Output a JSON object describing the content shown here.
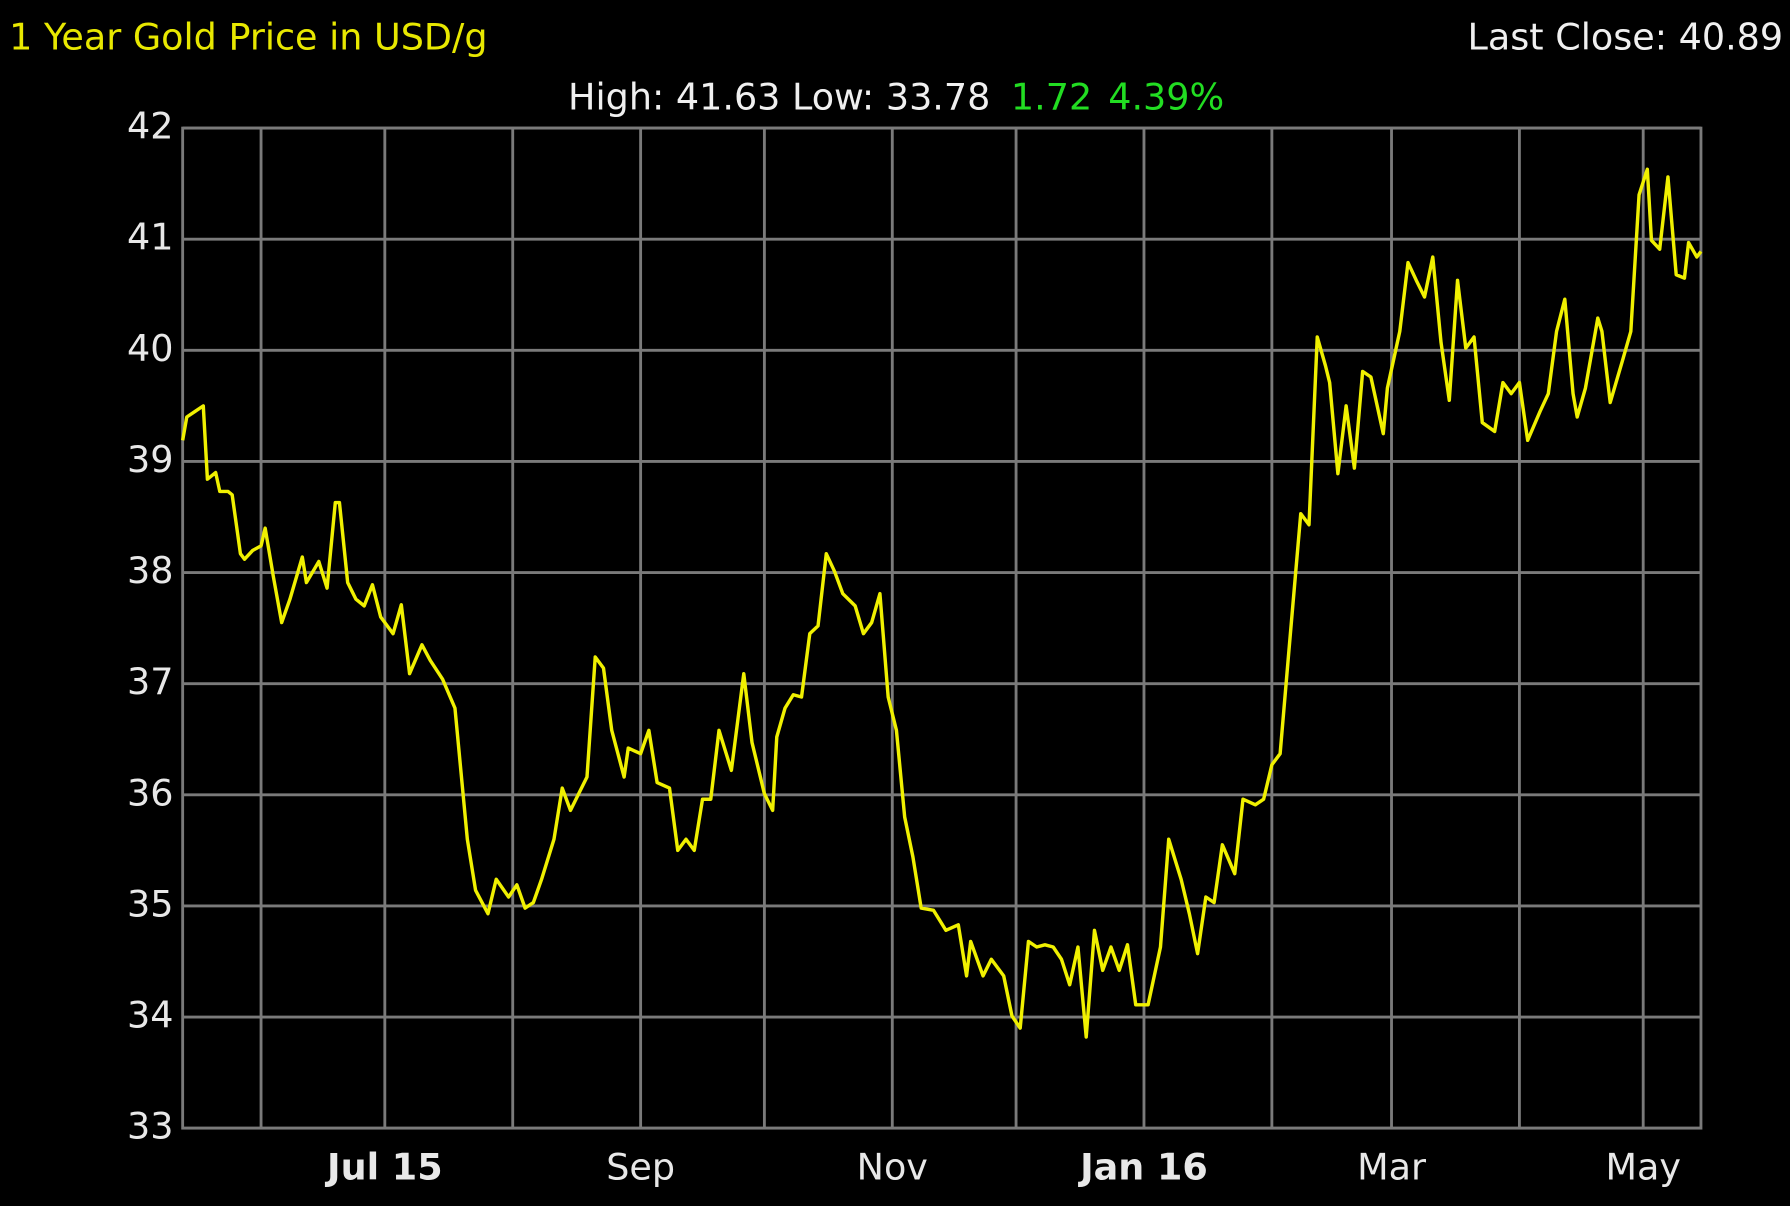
{
  "chart_data": {
    "type": "line",
    "title": "1 Year Gold Price in USD/g",
    "last_close": "Last Close: 40.89",
    "high_low": "High: 41.63 Low: 33.78",
    "change": "1.72",
    "change_pct": "4.39%",
    "x": [
      0,
      1,
      3,
      5,
      6,
      8,
      9,
      11,
      12,
      14,
      15,
      17,
      19,
      20,
      22,
      24,
      26,
      29,
      30,
      33,
      35,
      37,
      38,
      40,
      42,
      44,
      46,
      48,
      51,
      53,
      55,
      58,
      60,
      63,
      66,
      69,
      71,
      74,
      76,
      79,
      81,
      83,
      85,
      87,
      90,
      92,
      94,
      96,
      98,
      100,
      102,
      104,
      107,
      108,
      111,
      113,
      115,
      118,
      120,
      122,
      124,
      126,
      128,
      130,
      133,
      136,
      138,
      141,
      143,
      144,
      146,
      148,
      150,
      152,
      154,
      156,
      158,
      160,
      163,
      165,
      167,
      169,
      171,
      173,
      175,
      177,
      179,
      182,
      185,
      188,
      190,
      191,
      194,
      196,
      199,
      201,
      203,
      205,
      207,
      209,
      211,
      213,
      215,
      217,
      219,
      221,
      223,
      225,
      227,
      229,
      231,
      234,
      237,
      239,
      242,
      244,
      246,
      248,
      250,
      252,
      255,
      257,
      260,
      262,
      264,
      266,
      268,
      271,
      273,
      275,
      277,
      278,
      280,
      282,
      284,
      286,
      288,
      291,
      292,
      295,
      297,
      299,
      301,
      303,
      305,
      307,
      309,
      311,
      313,
      315,
      318,
      320,
      322,
      324,
      326,
      329,
      331,
      333,
      335,
      337,
      338,
      340,
      343,
      344,
      346,
      349,
      351,
      353,
      355,
      356,
      358,
      360,
      362,
      364,
      365,
      367,
      368
    ],
    "series": [
      {
        "name": "Gold",
        "color": "#f0f000",
        "values": [
          39.19,
          39.4,
          39.45,
          39.5,
          38.84,
          38.9,
          38.73,
          38.73,
          38.7,
          38.17,
          38.12,
          38.2,
          38.24,
          38.4,
          37.96,
          37.55,
          37.76,
          38.14,
          37.91,
          38.1,
          37.86,
          38.63,
          38.63,
          37.91,
          37.76,
          37.7,
          37.89,
          37.6,
          37.45,
          37.71,
          37.09,
          37.35,
          37.21,
          37.04,
          36.78,
          35.6,
          35.14,
          34.93,
          35.24,
          35.08,
          35.19,
          34.98,
          35.03,
          35.24,
          35.6,
          36.06,
          35.86,
          36.01,
          36.16,
          37.24,
          37.14,
          36.58,
          36.16,
          36.42,
          36.37,
          36.58,
          36.11,
          36.06,
          35.5,
          35.6,
          35.5,
          35.96,
          35.96,
          36.58,
          36.22,
          37.09,
          36.47,
          36.01,
          35.86,
          36.52,
          36.78,
          36.9,
          36.88,
          37.45,
          37.52,
          38.17,
          38.01,
          37.81,
          37.7,
          37.45,
          37.55,
          37.81,
          36.88,
          36.58,
          35.8,
          35.44,
          34.98,
          34.96,
          34.78,
          34.83,
          34.37,
          34.68,
          34.37,
          34.52,
          34.37,
          34.01,
          33.9,
          34.68,
          34.63,
          34.65,
          34.63,
          34.52,
          34.29,
          34.63,
          33.82,
          34.78,
          34.42,
          34.63,
          34.42,
          34.65,
          34.11,
          34.11,
          34.63,
          35.6,
          35.24,
          34.93,
          34.57,
          35.08,
          35.03,
          35.55,
          35.29,
          35.96,
          35.91,
          35.96,
          36.27,
          36.37,
          37.24,
          38.53,
          38.43,
          40.12,
          39.86,
          39.71,
          38.89,
          39.5,
          38.94,
          39.81,
          39.76,
          39.25,
          39.66,
          40.17,
          40.79,
          40.63,
          40.48,
          40.84,
          40.07,
          39.55,
          40.63,
          40.02,
          40.12,
          39.35,
          39.27,
          39.71,
          39.61,
          39.71,
          39.19,
          39.45,
          39.61,
          40.17,
          40.46,
          39.61,
          39.4,
          39.66,
          40.29,
          40.17,
          39.53,
          39.91,
          40.17,
          41.4,
          41.63,
          40.99,
          40.91,
          41.56,
          40.68,
          40.65,
          40.97,
          40.84,
          40.89
        ]
      }
    ],
    "xlim": [
      0,
      368
    ],
    "xticks": [
      {
        "value": 19,
        "label": null
      },
      {
        "value": 49,
        "label": "Jul 15"
      },
      {
        "value": 80,
        "label": null
      },
      {
        "value": 111,
        "label": "Sep"
      },
      {
        "value": 141,
        "label": null
      },
      {
        "value": 172,
        "label": "Nov"
      },
      {
        "value": 202,
        "label": null
      },
      {
        "value": 233,
        "label": "Jan 16"
      },
      {
        "value": 264,
        "label": null
      },
      {
        "value": 293,
        "label": "Mar"
      },
      {
        "value": 324,
        "label": null
      },
      {
        "value": 354,
        "label": "May"
      }
    ],
    "ylim": [
      33,
      42
    ],
    "yticks": [
      33,
      34,
      35,
      36,
      37,
      38,
      39,
      40,
      41,
      42
    ],
    "grid": true
  }
}
